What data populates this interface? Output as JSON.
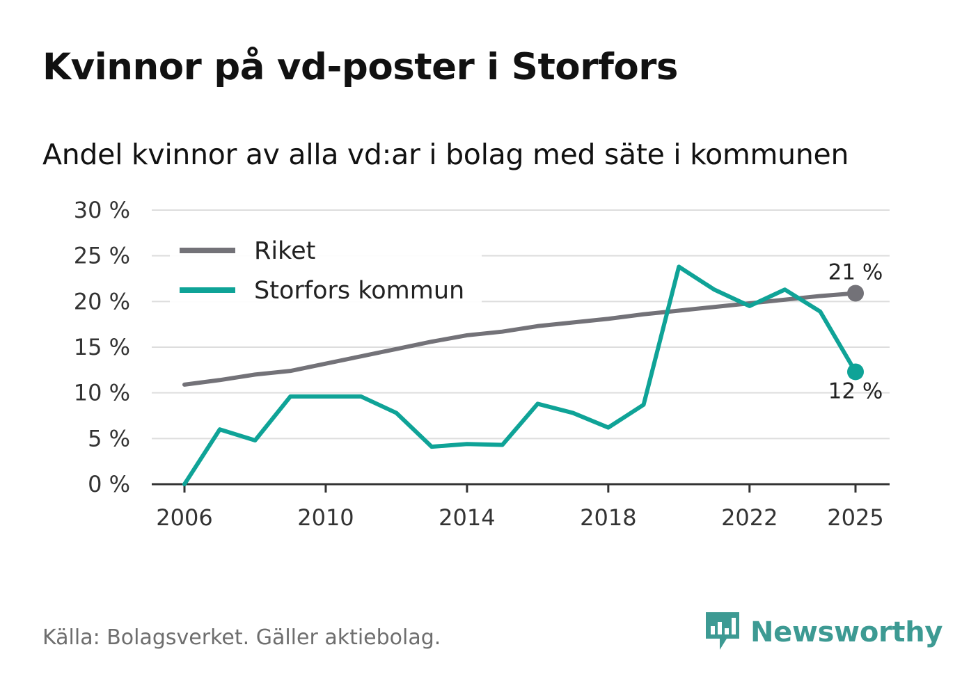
{
  "title": "Kvinnor på vd-poster i Storfors",
  "subtitle": "Andel kvinnor av alla vd:ar i bolag med säte i kommunen",
  "source": "Källa: Bolagsverket. Gäller aktiebolag.",
  "brand": {
    "name": "Newsworthy",
    "icon": "newsworthy-logo-icon"
  },
  "colors": {
    "riket": "#737278",
    "storfors": "#0fa397",
    "grid": "#dddddd",
    "axis": "#333333"
  },
  "chart_data": {
    "type": "line",
    "x": [
      2006,
      2007,
      2008,
      2009,
      2010,
      2011,
      2012,
      2013,
      2014,
      2015,
      2016,
      2017,
      2018,
      2019,
      2020,
      2021,
      2022,
      2023,
      2024,
      2025
    ],
    "series": [
      {
        "name": "Riket",
        "key": "riket",
        "values": [
          10.9,
          11.4,
          12.0,
          12.4,
          13.2,
          14.0,
          14.8,
          15.6,
          16.3,
          16.7,
          17.3,
          17.7,
          18.1,
          18.6,
          19.0,
          19.4,
          19.8,
          20.2,
          20.6,
          20.9
        ],
        "end_label": "21 %"
      },
      {
        "name": "Storfors kommun",
        "key": "storfors",
        "values": [
          0.0,
          6.0,
          4.8,
          9.6,
          9.6,
          9.6,
          7.8,
          4.1,
          4.4,
          4.3,
          8.8,
          7.8,
          6.2,
          8.7,
          23.8,
          21.3,
          19.5,
          21.3,
          18.9,
          12.3
        ],
        "end_label": "12 %"
      }
    ],
    "y_ticks": [
      0,
      5,
      10,
      15,
      20,
      25,
      30
    ],
    "y_tick_labels": [
      "0 %",
      "5 %",
      "10 %",
      "15 %",
      "20 %",
      "25 %",
      "30 %"
    ],
    "x_ticks": [
      2006,
      2010,
      2014,
      2018,
      2022,
      2025
    ],
    "x_tick_labels": [
      "2006",
      "2010",
      "2014",
      "2018",
      "2022",
      "2025"
    ],
    "ylim": [
      0,
      30
    ],
    "xlim": [
      2006,
      2025
    ],
    "grid": true,
    "legend": "top-left",
    "xlabel": "",
    "ylabel": ""
  }
}
